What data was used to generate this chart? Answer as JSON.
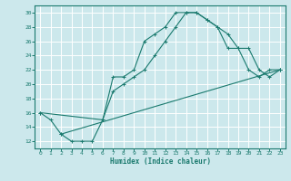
{
  "xlabel": "Humidex (Indice chaleur)",
  "bg_color": "#cce8ec",
  "grid_color": "#ffffff",
  "line_color": "#1a7a6e",
  "xlim": [
    -0.5,
    23.5
  ],
  "ylim": [
    11,
    31
  ],
  "xticks": [
    0,
    1,
    2,
    3,
    4,
    5,
    6,
    7,
    8,
    9,
    10,
    11,
    12,
    13,
    14,
    15,
    16,
    17,
    18,
    19,
    20,
    21,
    22,
    23
  ],
  "yticks": [
    12,
    14,
    16,
    18,
    20,
    22,
    24,
    26,
    28,
    30
  ],
  "line1_x": [
    0,
    1,
    2,
    3,
    4,
    5,
    6,
    7,
    8,
    9,
    10,
    11,
    12,
    13,
    14,
    15,
    16,
    17,
    18,
    19,
    20,
    21,
    22,
    23
  ],
  "line1_y": [
    16,
    15,
    13,
    12,
    12,
    12,
    15,
    21,
    21,
    22,
    26,
    27,
    28,
    30,
    30,
    30,
    29,
    28,
    25,
    25,
    22,
    21,
    22,
    22
  ],
  "line2_x": [
    0,
    6,
    7,
    8,
    9,
    10,
    11,
    12,
    13,
    14,
    15,
    16,
    17,
    18,
    19,
    20,
    21,
    22,
    23
  ],
  "line2_y": [
    16,
    15,
    19,
    20,
    21,
    22,
    24,
    26,
    28,
    30,
    30,
    29,
    28,
    27,
    25,
    25,
    22,
    21,
    22
  ],
  "line3_x": [
    2,
    23
  ],
  "line3_y": [
    13,
    22
  ]
}
